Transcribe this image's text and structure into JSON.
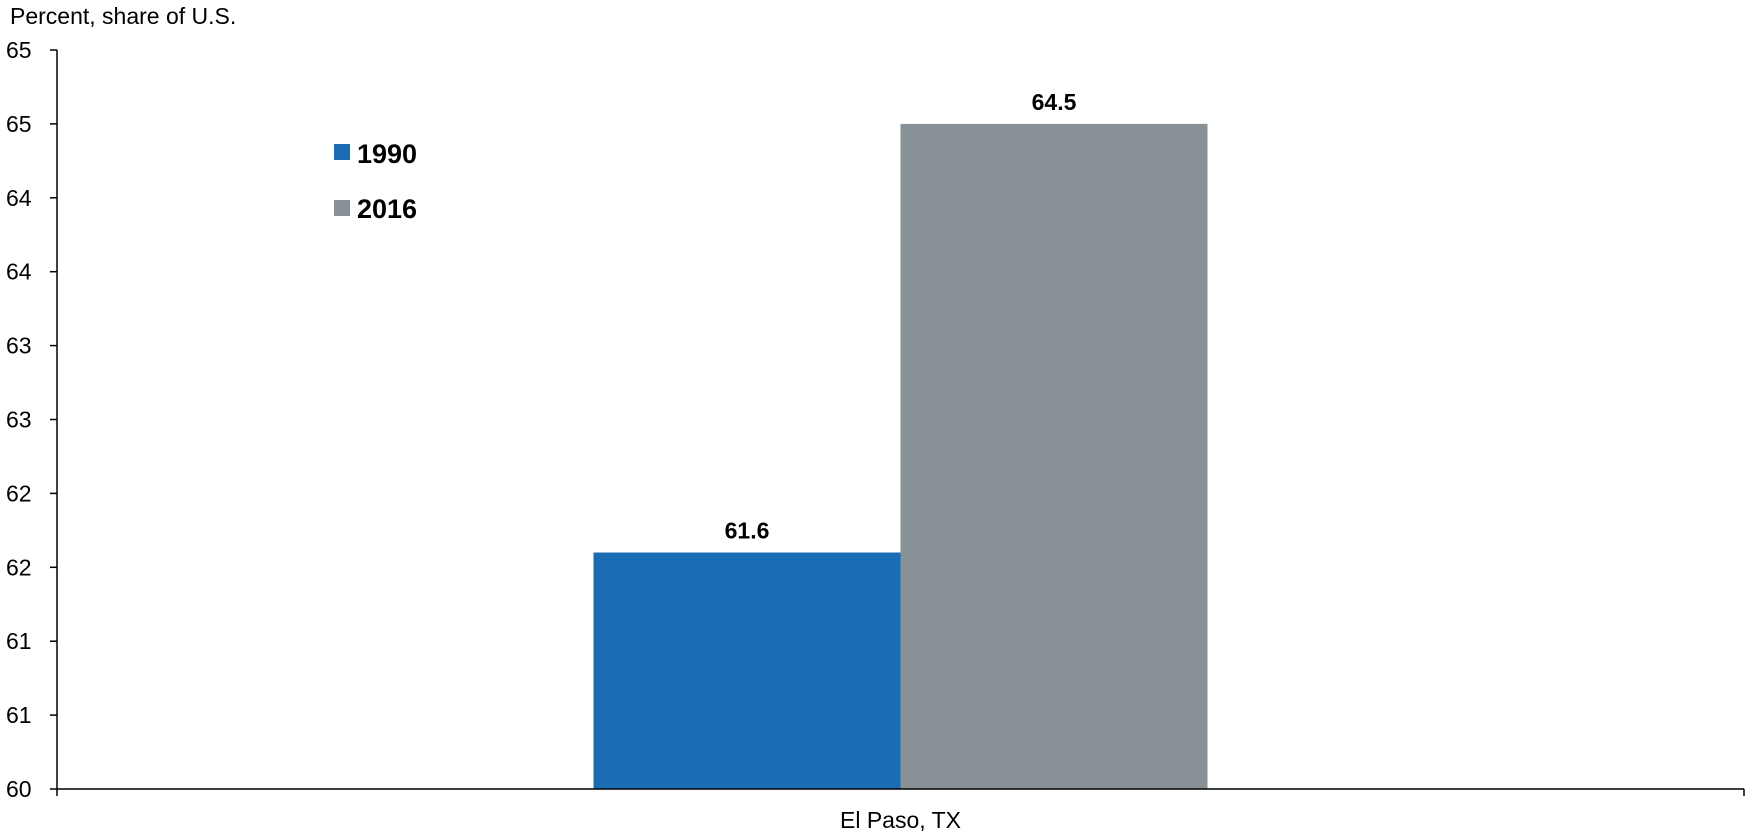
{
  "chart_data": {
    "type": "bar",
    "title": "",
    "ylabel": "Percent, share of U.S.",
    "xlabel": "",
    "categories": [
      "El Paso, TX"
    ],
    "series": [
      {
        "name": "1990",
        "values": [
          61.6
        ],
        "color": "#1a6db5"
      },
      {
        "name": "2016",
        "values": [
          64.5
        ],
        "color": "#889196"
      }
    ],
    "ylim": [
      60,
      65
    ],
    "yticks": [
      60,
      60.5,
      61,
      61.5,
      62,
      62.5,
      63,
      63.5,
      64,
      64.5,
      65
    ],
    "ytick_labels": [
      "60",
      "61",
      "61",
      "62",
      "62",
      "63",
      "63",
      "64",
      "64",
      "65",
      "65"
    ],
    "data_labels": [
      "61.6",
      "64.5"
    ],
    "legend_position": "top-left",
    "grid": false
  }
}
